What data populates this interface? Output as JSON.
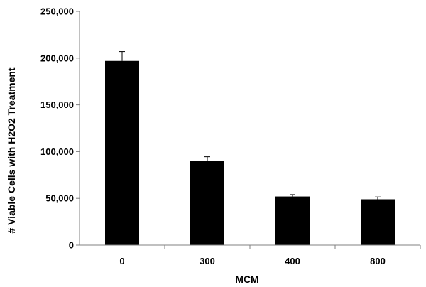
{
  "chart_data": {
    "type": "bar",
    "title": "",
    "xlabel": "MCM",
    "ylabel": "# Viable Cells with H2O2 Treatment",
    "categories": [
      "0",
      "300",
      "400",
      "800"
    ],
    "values": [
      197000,
      90000,
      52000,
      49000
    ],
    "error_bars": [
      10000,
      4500,
      2000,
      2500
    ],
    "ylim": [
      0,
      250000
    ],
    "y_ticks": [
      0,
      50000,
      100000,
      150000,
      200000,
      250000
    ],
    "y_tick_labels": [
      "0",
      "50,000",
      "100,000",
      "150,000",
      "200,000",
      "250,000"
    ],
    "bar_color": "#000000",
    "grid": false,
    "legend": "none"
  }
}
